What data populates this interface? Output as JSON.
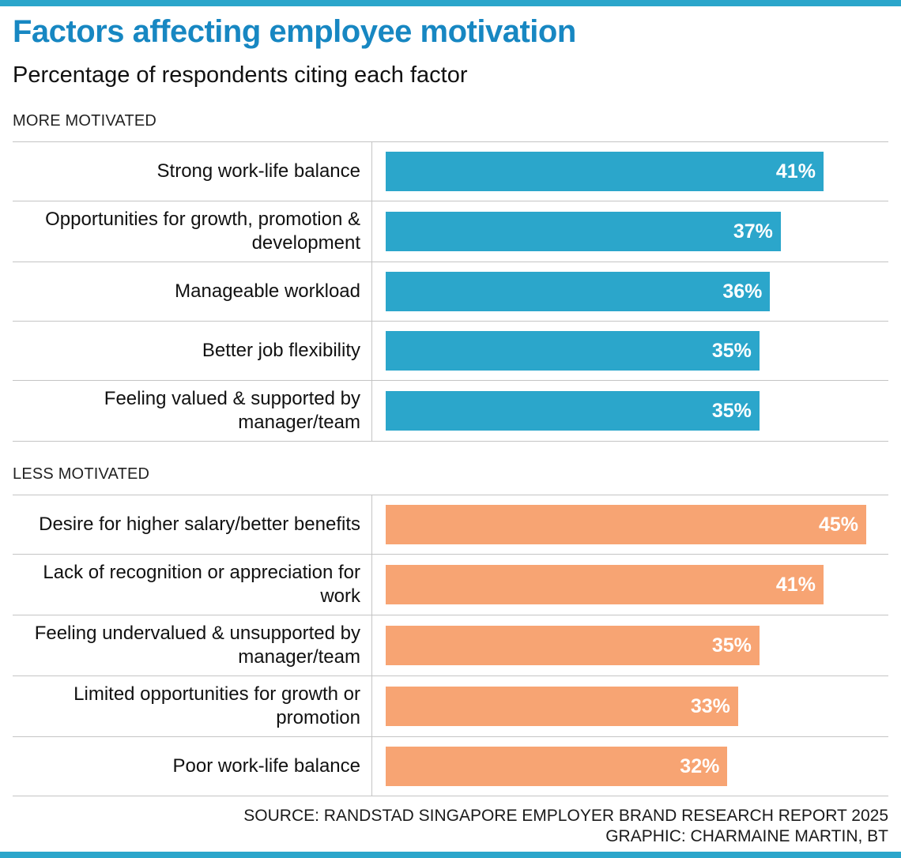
{
  "theme": {
    "accent_blue": "#2ba6cb",
    "title_color": "#1787c2",
    "more_motivated_bar_color": "#2ba6cb",
    "less_motivated_bar_color": "#f7a473",
    "divider_color": "#c4c4c4"
  },
  "chart_data": {
    "type": "bar",
    "orientation": "horizontal",
    "title": "Factors affecting employee motivation",
    "subtitle": "Percentage of respondents citing each factor",
    "unit": "%",
    "xmax": 45,
    "value_labels": "inside-end",
    "grid": false,
    "groups": [
      {
        "label": "MORE MOTIVATED",
        "color": "#2ba6cb",
        "categories": [
          "Strong work-life balance",
          "Opportunities for growth, promotion & development",
          "Manageable workload",
          "Better job flexibility",
          "Feeling valued & supported by manager/team"
        ],
        "values": [
          41,
          37,
          36,
          35,
          35
        ]
      },
      {
        "label": "LESS MOTIVATED",
        "color": "#f7a473",
        "categories": [
          "Desire for higher salary/better benefits",
          "Lack of recognition or appreciation for work",
          "Feeling undervalued & unsupported by manager/team",
          "Limited opportunities for growth or promotion",
          "Poor work-life balance"
        ],
        "values": [
          45,
          41,
          35,
          33,
          32
        ]
      }
    ],
    "source": "SOURCE: RANDSTAD SINGAPORE EMPLOYER BRAND RESEARCH REPORT 2025",
    "credit": "GRAPHIC: CHARMAINE MARTIN, BT"
  }
}
